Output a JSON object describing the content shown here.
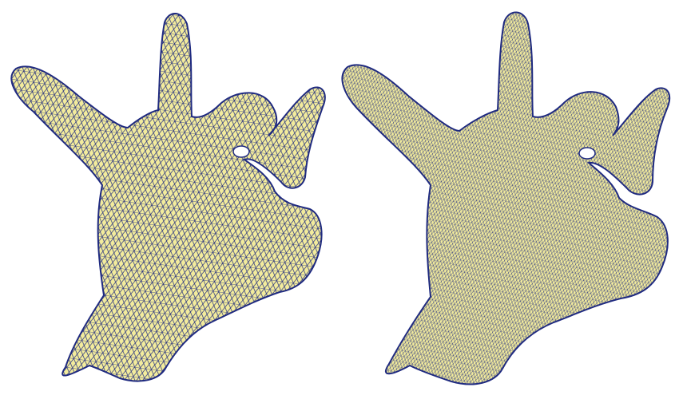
{
  "figure": {
    "panels": [
      {
        "id": "left",
        "subject": "hand-mesh",
        "mesh_density": "coarse"
      },
      {
        "id": "right",
        "subject": "hand-mesh",
        "mesh_density": "fine"
      }
    ],
    "colors": {
      "fill": "#f3ec9c",
      "wire": "#1f2a80",
      "background": "#ffffff"
    }
  }
}
